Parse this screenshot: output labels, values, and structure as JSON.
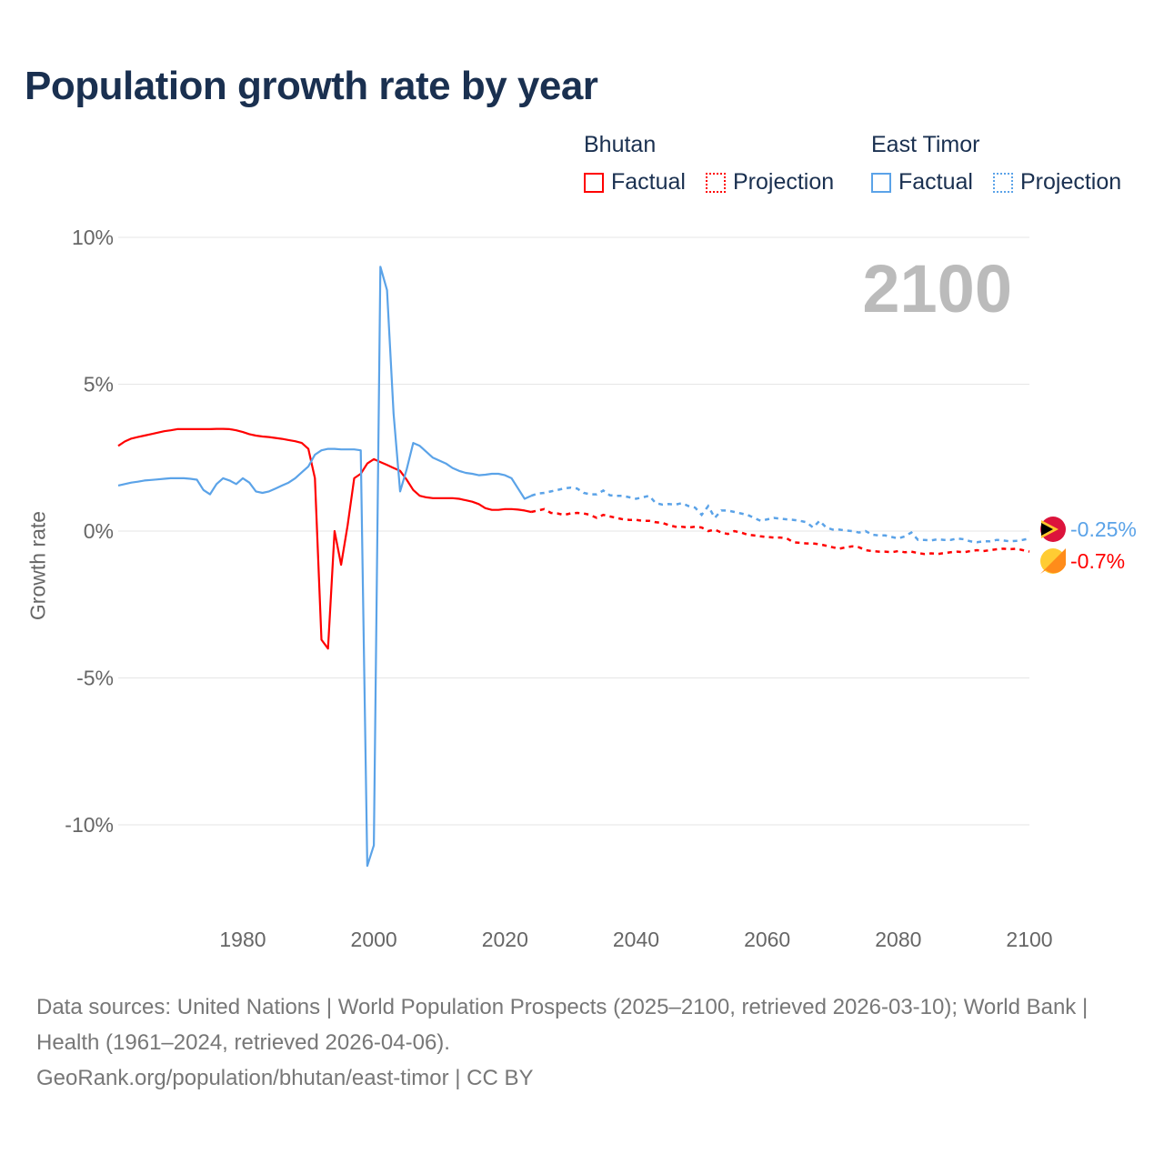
{
  "title": "Population growth rate by year",
  "legend": {
    "groups": [
      {
        "name": "Bhutan",
        "factual": "Factual",
        "projection": "Projection",
        "color": "#ff0000"
      },
      {
        "name": "East Timor",
        "factual": "Factual",
        "projection": "Projection",
        "color": "#5ba3e8"
      }
    ]
  },
  "current_year": "2100",
  "footer": {
    "sources": "Data sources: United Nations | World Population Prospects (2025–2100, retrieved 2026-03-10); World Bank | Health (1961–2024, retrieved 2026-04-06).",
    "link": "GeoRank.org/population/bhutan/east-timor | CC BY"
  },
  "chart_data": {
    "type": "line",
    "title": "Population growth rate by year",
    "xlabel": "",
    "ylabel": "Growth rate",
    "xlim": [
      1961,
      2100
    ],
    "ylim": [
      -12.5,
      10
    ],
    "x_ticks": [
      1980,
      2000,
      2020,
      2040,
      2060,
      2080,
      2100
    ],
    "y_ticks": [
      {
        "v": 10,
        "label": "10%"
      },
      {
        "v": 5,
        "label": "5%"
      },
      {
        "v": 0,
        "label": "0%"
      },
      {
        "v": -5,
        "label": "-5%"
      },
      {
        "v": -10,
        "label": "-10%"
      }
    ],
    "grid": true,
    "series": [
      {
        "name": "Bhutan",
        "color": "#ff0000",
        "end_label": "-0.7%",
        "factual_start": 1961,
        "factual": [
          2.9,
          3.05,
          3.15,
          3.2,
          3.25,
          3.3,
          3.35,
          3.4,
          3.43,
          3.47,
          3.47,
          3.47,
          3.47,
          3.47,
          3.47,
          3.48,
          3.48,
          3.47,
          3.43,
          3.37,
          3.3,
          3.25,
          3.22,
          3.2,
          3.17,
          3.14,
          3.1,
          3.06,
          3.0,
          2.8,
          1.8,
          -3.7,
          -4.0,
          0.0,
          -1.15,
          0.2,
          1.8,
          1.95,
          2.3,
          2.45,
          2.35,
          2.25,
          2.15,
          2.05,
          1.75,
          1.4,
          1.2,
          1.15,
          1.12,
          1.12,
          1.12,
          1.12,
          1.1,
          1.05,
          1.0,
          0.92,
          0.78,
          0.72,
          0.72,
          0.75,
          0.75,
          0.73,
          0.7,
          0.65
        ],
        "projection_start": 2025,
        "projection": [
          0.7,
          0.75,
          0.62,
          0.6,
          0.55,
          0.6,
          0.62,
          0.6,
          0.55,
          0.45,
          0.55,
          0.5,
          0.45,
          0.4,
          0.38,
          0.38,
          0.35,
          0.35,
          0.3,
          0.28,
          0.2,
          0.15,
          0.15,
          0.12,
          0.15,
          0.12,
          0.0,
          0.05,
          -0.05,
          -0.1,
          0.0,
          -0.05,
          -0.12,
          -0.15,
          -0.18,
          -0.2,
          -0.22,
          -0.22,
          -0.25,
          -0.38,
          -0.4,
          -0.42,
          -0.42,
          -0.45,
          -0.5,
          -0.55,
          -0.6,
          -0.55,
          -0.52,
          -0.55,
          -0.65,
          -0.68,
          -0.7,
          -0.7,
          -0.72,
          -0.68,
          -0.72,
          -0.7,
          -0.75,
          -0.78,
          -0.76,
          -0.78,
          -0.75,
          -0.72,
          -0.7,
          -0.72,
          -0.68,
          -0.65,
          -0.68,
          -0.65,
          -0.62,
          -0.6,
          -0.62,
          -0.6,
          -0.65,
          -0.7
        ]
      },
      {
        "name": "East Timor",
        "color": "#5ba3e8",
        "end_label": "-0.25%",
        "factual_start": 1961,
        "factual": [
          1.55,
          1.6,
          1.65,
          1.68,
          1.72,
          1.74,
          1.76,
          1.78,
          1.8,
          1.8,
          1.8,
          1.78,
          1.75,
          1.4,
          1.25,
          1.6,
          1.8,
          1.72,
          1.6,
          1.8,
          1.65,
          1.35,
          1.3,
          1.35,
          1.45,
          1.55,
          1.65,
          1.8,
          2.0,
          2.2,
          2.6,
          2.75,
          2.8,
          2.8,
          2.78,
          2.78,
          2.78,
          2.75,
          -11.4,
          -10.7,
          9.0,
          8.2,
          4.0,
          1.35,
          2.1,
          3.0,
          2.9,
          2.7,
          2.5,
          2.4,
          2.3,
          2.15,
          2.05,
          1.98,
          1.95,
          1.9,
          1.92,
          1.95,
          1.95,
          1.9,
          1.8,
          1.45,
          1.1,
          1.2
        ],
        "projection_start": 2025,
        "projection": [
          1.28,
          1.3,
          1.35,
          1.4,
          1.45,
          1.48,
          1.45,
          1.3,
          1.25,
          1.25,
          1.38,
          1.22,
          1.2,
          1.2,
          1.15,
          1.1,
          1.15,
          1.2,
          0.95,
          0.9,
          0.92,
          0.9,
          0.95,
          0.85,
          0.8,
          0.55,
          0.85,
          0.45,
          0.7,
          0.7,
          0.65,
          0.6,
          0.55,
          0.45,
          0.35,
          0.4,
          0.45,
          0.42,
          0.4,
          0.38,
          0.35,
          0.3,
          0.12,
          0.35,
          0.12,
          0.05,
          0.05,
          0.02,
          0.0,
          -0.05,
          0.0,
          -0.12,
          -0.15,
          -0.15,
          -0.2,
          -0.25,
          -0.18,
          -0.05,
          -0.3,
          -0.3,
          -0.32,
          -0.28,
          -0.3,
          -0.3,
          -0.25,
          -0.28,
          -0.35,
          -0.38,
          -0.35,
          -0.35,
          -0.3,
          -0.32,
          -0.35,
          -0.33,
          -0.3,
          -0.25
        ]
      }
    ]
  }
}
